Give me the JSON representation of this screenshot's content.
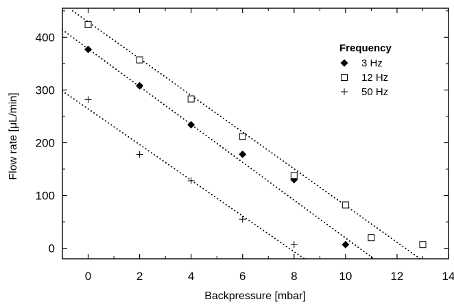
{
  "chart_data": {
    "type": "scatter",
    "xlabel": "Backpressure [mbar]",
    "ylabel": "Flow rate [μL/min]",
    "xlim": [
      -1,
      14
    ],
    "ylim": [
      -20,
      455
    ],
    "xticks": [
      0,
      2,
      4,
      6,
      8,
      10,
      12,
      14
    ],
    "yticks": [
      0,
      100,
      200,
      300,
      400
    ],
    "grid": false,
    "legend": {
      "title": "Frequency",
      "placement": "top-right"
    },
    "series": [
      {
        "name": "3 Hz",
        "marker": "filled-diamond",
        "points": [
          {
            "x": 0,
            "y": 377
          },
          {
            "x": 2,
            "y": 308
          },
          {
            "x": 4,
            "y": 234
          },
          {
            "x": 6,
            "y": 178
          },
          {
            "x": 8,
            "y": 130
          },
          {
            "x": 10,
            "y": 7
          }
        ],
        "fit_line": {
          "x": [
            -1,
            11.1
          ],
          "y": [
            414,
            -20
          ]
        }
      },
      {
        "name": "12 Hz",
        "marker": "open-square",
        "points": [
          {
            "x": 0,
            "y": 424
          },
          {
            "x": 2,
            "y": 357
          },
          {
            "x": 4,
            "y": 283
          },
          {
            "x": 6,
            "y": 212
          },
          {
            "x": 8,
            "y": 138
          },
          {
            "x": 10,
            "y": 82
          },
          {
            "x": 11,
            "y": 20
          },
          {
            "x": 13,
            "y": 7
          }
        ],
        "fit_line": {
          "x": [
            -0.6,
            12.9
          ],
          "y": [
            450,
            -20
          ]
        }
      },
      {
        "name": "50 Hz",
        "marker": "plus",
        "points": [
          {
            "x": 0,
            "y": 282
          },
          {
            "x": 2,
            "y": 178
          },
          {
            "x": 4,
            "y": 128
          },
          {
            "x": 6,
            "y": 55
          },
          {
            "x": 8,
            "y": 7
          }
        ],
        "fit_line": {
          "x": [
            -1,
            8.4
          ],
          "y": [
            298,
            -20
          ]
        }
      }
    ]
  }
}
